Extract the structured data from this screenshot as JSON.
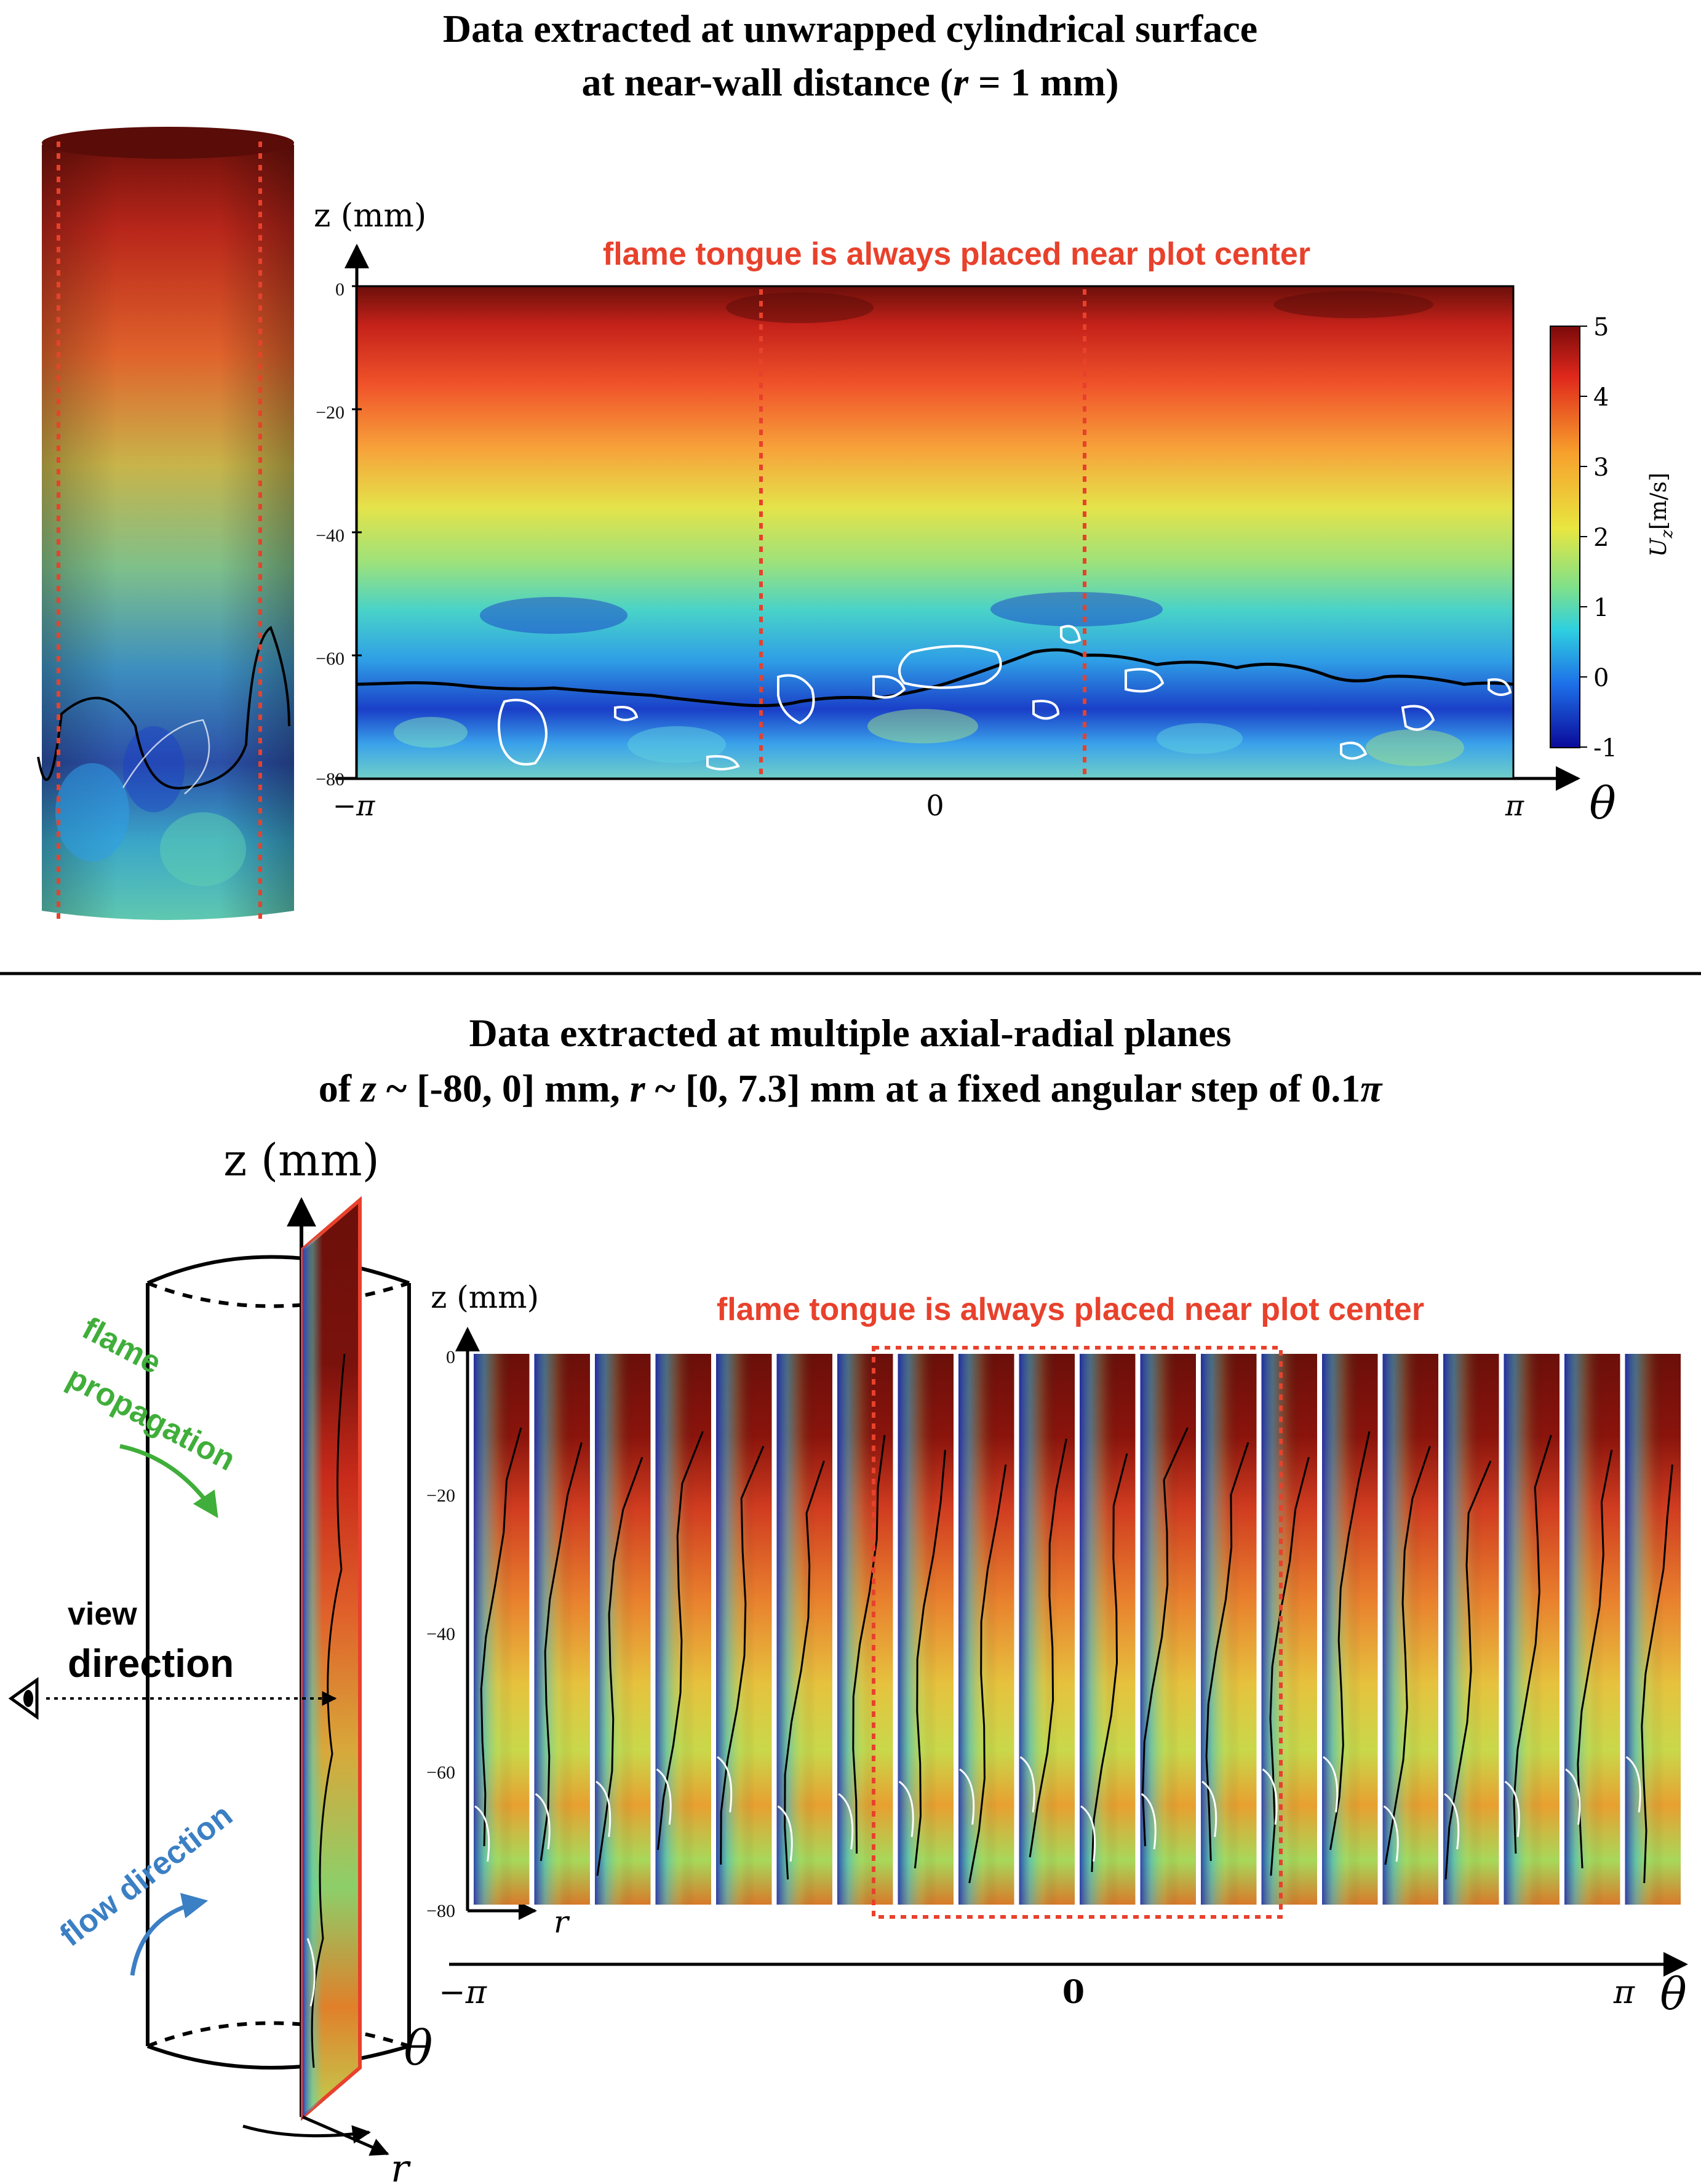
{
  "top": {
    "title_line1": "Data extracted at unwrapped cylindrical surface",
    "title_line2_pre": "at near-wall distance (",
    "title_line2_r": "r",
    "title_line2_post": " = 1 mm)",
    "z_axis_label": "z (mm)",
    "note": "flame tongue is always placed near plot center",
    "y_ticks": [
      "0",
      "−20",
      "−40",
      "−60",
      "−80"
    ],
    "theta_ticks": [
      "−π",
      "0",
      "π"
    ],
    "theta_label": "θ",
    "colorbar": {
      "ticks": [
        "5",
        "4",
        "3",
        "2",
        "1",
        "0",
        "-1"
      ],
      "label_main": "U",
      "label_sub": "z",
      "label_unit": "[m/s]",
      "min": -1,
      "max": 5
    }
  },
  "bottom": {
    "title_line1": "Data extracted at multiple axial-radial planes",
    "title_line2_a": "of ",
    "title_line2_z": "z",
    "title_line2_b": " ~ [-80, 0] mm, ",
    "title_line2_r": "r",
    "title_line2_c": " ~ [0, 7.3] mm at a fixed angular step of 0.1",
    "title_line2_pi": "π",
    "z_axis_label_big": "z (mm)",
    "z_axis_label": "z (mm)",
    "note": "flame tongue is always placed near plot center",
    "y_ticks": [
      "0",
      "−20",
      "−40",
      "−60",
      "−80"
    ],
    "r_label": "r",
    "theta_ticks": [
      "−π",
      "0",
      "π"
    ],
    "theta_label": "θ",
    "cyl_theta_label": "θ",
    "cyl_r_label": "r",
    "flame_prop_line1": "flame",
    "flame_prop_line2": "propagation",
    "view_line1": "view",
    "view_line2": "direction",
    "flow_dir": "flow direction",
    "num_planes": 20
  },
  "colors": {
    "note_red": "#e8412c",
    "flame_green": "#3fae3a",
    "flow_blue": "#3b7fc4",
    "dark_red": "#6b0f0a"
  }
}
